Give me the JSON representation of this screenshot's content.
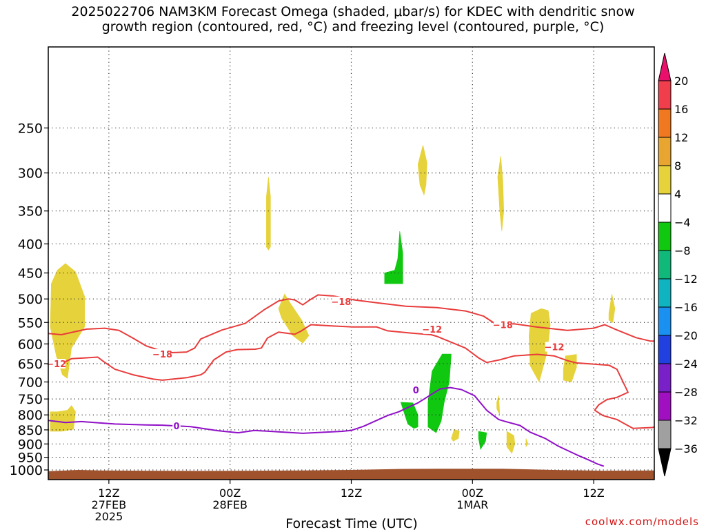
{
  "title_line1": "2025022706 NAM3KM Forecast Omega (shaded, μbar/s) for KDEC with dendritic snow",
  "title_line2": "growth region (contoured, red, °C) and freezing level (contoured, purple, °C)",
  "watermark": "coolwx.com/models",
  "chart_data": {
    "type": "contour-timeheight",
    "xlabel": "Forecast Time (UTC)",
    "x_ticks": [
      {
        "h": 6,
        "label": "12Z",
        "sub": [
          "27FEB",
          "2025"
        ]
      },
      {
        "h": 18,
        "label": "00Z",
        "sub": [
          "28FEB"
        ]
      },
      {
        "h": 30,
        "label": "12Z",
        "sub": []
      },
      {
        "h": 42,
        "label": "00Z",
        "sub": [
          "1MAR"
        ]
      },
      {
        "h": 54,
        "label": "12Z",
        "sub": []
      }
    ],
    "xlim": [
      0,
      60
    ],
    "y_scale": "log-pressure",
    "ylim": [
      1040,
      180
    ],
    "y_ticks": [
      250,
      300,
      350,
      400,
      450,
      500,
      550,
      600,
      650,
      700,
      750,
      800,
      850,
      900,
      950,
      1000
    ],
    "grid": true,
    "colorbar": {
      "ticks": [
        "20",
        "16",
        "12",
        "8",
        "4",
        "−4",
        "−8",
        "−12",
        "−16",
        "−20",
        "−24",
        "−28",
        "−32",
        "−36"
      ],
      "colors": [
        "#f03e4c",
        "#f07820",
        "#e8a630",
        "#e6d23a",
        "#ffffff",
        "#10c810",
        "#10b87a",
        "#10b4c0",
        "#1a90f0",
        "#2040e0",
        "#7a20c8",
        "#a010c0",
        "#a0a0a0"
      ],
      "top_color": "#e8106a",
      "bottom_color": "#000000"
    },
    "series": [
      {
        "kind": "contour",
        "temp": -12,
        "color": "#e83c3c",
        "labels": [
          [
            0.8,
            650
          ],
          [
            50.1,
            607
          ],
          [
            38,
            565
          ]
        ],
        "points": [
          [
            0,
            655
          ],
          [
            1.2,
            652
          ],
          [
            1.7,
            645
          ],
          [
            2.3,
            637
          ],
          [
            4.9,
            633
          ],
          [
            5.5,
            645
          ],
          [
            6.6,
            665
          ],
          [
            8.4,
            680
          ],
          [
            10.4,
            692
          ],
          [
            11.3,
            695
          ],
          [
            12.3,
            692
          ],
          [
            13.7,
            688
          ],
          [
            15.1,
            680
          ],
          [
            15.5,
            673
          ],
          [
            16.4,
            640
          ],
          [
            17.6,
            620
          ],
          [
            18.7,
            614
          ],
          [
            20.5,
            613
          ],
          [
            21.1,
            610
          ],
          [
            21.7,
            586
          ],
          [
            22.8,
            572
          ],
          [
            24.4,
            577
          ],
          [
            25,
            570
          ],
          [
            26,
            555
          ],
          [
            28.2,
            558
          ],
          [
            30,
            560
          ],
          [
            32.5,
            560
          ],
          [
            33.6,
            569
          ],
          [
            35.8,
            574
          ],
          [
            37.9,
            578
          ],
          [
            38.5,
            582
          ],
          [
            41.3,
            610
          ],
          [
            42.6,
            635
          ],
          [
            43.4,
            647
          ],
          [
            44.7,
            640
          ],
          [
            46.1,
            630
          ],
          [
            48.4,
            626
          ],
          [
            50.1,
            630
          ],
          [
            51.4,
            642
          ],
          [
            52.3,
            648
          ],
          [
            55.5,
            654
          ],
          [
            56.3,
            665
          ],
          [
            57.4,
            730
          ],
          [
            56.3,
            745
          ],
          [
            55.3,
            752
          ],
          [
            54.5,
            768
          ],
          [
            54.1,
            785
          ],
          [
            54.9,
            802
          ],
          [
            56.3,
            815
          ],
          [
            57.1,
            830
          ],
          [
            57.9,
            845
          ],
          [
            59.8,
            842
          ],
          [
            60,
            840
          ]
        ]
      },
      {
        "kind": "contour",
        "temp": -18,
        "color": "#e83c3c",
        "labels": [
          [
            11.3,
            625
          ],
          [
            29,
            505
          ],
          [
            45,
            555
          ]
        ],
        "points": [
          [
            0,
            575
          ],
          [
            1.3,
            578
          ],
          [
            3.8,
            565
          ],
          [
            5.6,
            563
          ],
          [
            7,
            568
          ],
          [
            8.3,
            585
          ],
          [
            9.7,
            605
          ],
          [
            11.8,
            622
          ],
          [
            13.7,
            620
          ],
          [
            14.5,
            610
          ],
          [
            15.1,
            588
          ],
          [
            17.2,
            567
          ],
          [
            19.5,
            552
          ],
          [
            21.4,
            522
          ],
          [
            22.8,
            504
          ],
          [
            23.8,
            500
          ],
          [
            24.4,
            502
          ],
          [
            25.2,
            512
          ],
          [
            25.9,
            502
          ],
          [
            26.7,
            492
          ],
          [
            28.2,
            494
          ],
          [
            30.3,
            502
          ],
          [
            32.6,
            508
          ],
          [
            35.4,
            515
          ],
          [
            38.5,
            518
          ],
          [
            41.3,
            525
          ],
          [
            43.1,
            536
          ],
          [
            44.2,
            552
          ],
          [
            44.7,
            555
          ],
          [
            46.1,
            553
          ],
          [
            48.3,
            560
          ],
          [
            51.4,
            568
          ],
          [
            54,
            563
          ],
          [
            55.1,
            555
          ],
          [
            56.1,
            565
          ],
          [
            58.2,
            585
          ],
          [
            59.6,
            593
          ],
          [
            60,
            593
          ]
        ]
      },
      {
        "kind": "contour",
        "temp": 0,
        "color": "#9010c8",
        "labels": [
          [
            12.7,
            836
          ],
          [
            36.4,
            723
          ]
        ],
        "points": [
          [
            0,
            818
          ],
          [
            1.7,
            825
          ],
          [
            3.3,
            822
          ],
          [
            4.9,
            826
          ],
          [
            6.6,
            830
          ],
          [
            9.7,
            833
          ],
          [
            11.3,
            834
          ],
          [
            14.1,
            839
          ],
          [
            16.8,
            853
          ],
          [
            18.8,
            860
          ],
          [
            20.4,
            852
          ],
          [
            22.8,
            857
          ],
          [
            25.2,
            862
          ],
          [
            29.1,
            855
          ],
          [
            30,
            852
          ],
          [
            31.2,
            838
          ],
          [
            33.6,
            802
          ],
          [
            34.7,
            790
          ],
          [
            36.6,
            762
          ],
          [
            38.8,
            720
          ],
          [
            39.8,
            716
          ],
          [
            40.9,
            722
          ],
          [
            42.2,
            740
          ],
          [
            43.4,
            785
          ],
          [
            44.6,
            815
          ],
          [
            45.3,
            822
          ],
          [
            46.7,
            835
          ],
          [
            47.7,
            858
          ],
          [
            49.2,
            880
          ],
          [
            50.5,
            908
          ],
          [
            52.3,
            940
          ],
          [
            53.6,
            962
          ],
          [
            54.3,
            975
          ],
          [
            55,
            985
          ]
        ]
      }
    ],
    "shaded": [
      {
        "band": "4 to 8",
        "color": "#e6d23a",
        "points": [
          [
            0.3,
            470
          ],
          [
            0.9,
            445
          ],
          [
            1.7,
            433
          ],
          [
            2.7,
            448
          ],
          [
            3.6,
            495
          ],
          [
            3.6,
            560
          ],
          [
            2.3,
            610
          ],
          [
            1.9,
            690
          ],
          [
            1.4,
            680
          ],
          [
            0.8,
            630
          ],
          [
            0.2,
            560
          ]
        ]
      },
      {
        "band": "4 to 8",
        "color": "#e6d23a",
        "points": [
          [
            0.2,
            790
          ],
          [
            0.9,
            790
          ],
          [
            1.9,
            785
          ],
          [
            2.3,
            770
          ],
          [
            2.7,
            790
          ],
          [
            2.5,
            848
          ],
          [
            1.3,
            855
          ],
          [
            0.2,
            855
          ]
        ]
      },
      {
        "band": "4 to 8",
        "color": "#e6d23a",
        "points": [
          [
            21.6,
            330
          ],
          [
            21.8,
            305
          ],
          [
            22,
            330
          ],
          [
            22,
            405
          ],
          [
            21.8,
            410
          ],
          [
            21.6,
            405
          ]
        ]
      },
      {
        "band": "4 to 8",
        "color": "#e6d23a",
        "points": [
          [
            22.8,
            520
          ],
          [
            23.4,
            490
          ],
          [
            24,
            510
          ],
          [
            25.1,
            545
          ],
          [
            25.8,
            580
          ],
          [
            25.2,
            598
          ],
          [
            24.2,
            580
          ],
          [
            23.1,
            540
          ]
        ]
      },
      {
        "band": "4 to 8",
        "color": "#e6d23a",
        "points": [
          [
            36.6,
            290
          ],
          [
            37.1,
            268
          ],
          [
            37.5,
            288
          ],
          [
            37.4,
            315
          ],
          [
            37.2,
            328
          ],
          [
            36.8,
            315
          ]
        ]
      },
      {
        "band": "4 to 8",
        "color": "#e6d23a",
        "points": [
          [
            44.5,
            305
          ],
          [
            44.8,
            280
          ],
          [
            45,
            310
          ],
          [
            45.1,
            350
          ],
          [
            44.9,
            380
          ],
          [
            44.7,
            350
          ]
        ]
      },
      {
        "band": "4 to 8",
        "color": "#e6d23a",
        "points": [
          [
            47.8,
            530
          ],
          [
            48.8,
            520
          ],
          [
            49.5,
            524
          ],
          [
            49.7,
            555
          ],
          [
            49.4,
            620
          ],
          [
            48.6,
            700
          ],
          [
            47.7,
            655
          ],
          [
            47.6,
            580
          ]
        ]
      },
      {
        "band": "4 to 8",
        "color": "#e6d23a",
        "points": [
          [
            51.2,
            630
          ],
          [
            52.3,
            626
          ],
          [
            52.3,
            660
          ],
          [
            51.8,
            700
          ],
          [
            51,
            695
          ],
          [
            51,
            665
          ]
        ]
      },
      {
        "band": "4 to 8",
        "color": "#e6d23a",
        "points": [
          [
            55.5,
            530
          ],
          [
            55.8,
            490
          ],
          [
            56.1,
            520
          ],
          [
            55.9,
            550
          ],
          [
            55.5,
            545
          ]
        ]
      },
      {
        "band": "4 to 8",
        "color": "#e6d23a",
        "points": [
          [
            40.2,
            848
          ],
          [
            40.7,
            855
          ],
          [
            40.6,
            880
          ],
          [
            40.1,
            890
          ],
          [
            39.9,
            880
          ]
        ]
      },
      {
        "band": "4 to 8",
        "color": "#e6d23a",
        "points": [
          [
            44.6,
            740
          ],
          [
            44.7,
            800
          ],
          [
            44.4,
            780
          ],
          [
            44.4,
            760
          ]
        ]
      },
      {
        "band": "4 to 8",
        "color": "#e6d23a",
        "points": [
          [
            45.4,
            855
          ],
          [
            46.1,
            870
          ],
          [
            46.2,
            900
          ],
          [
            45.9,
            935
          ],
          [
            45.4,
            910
          ]
        ]
      },
      {
        "band": "4 to 8",
        "color": "#e6d23a",
        "points": [
          [
            47.3,
            880
          ],
          [
            47.5,
            900
          ],
          [
            47.3,
            910
          ]
        ]
      },
      {
        "band": "-4 to -8",
        "color": "#10c810",
        "points": [
          [
            33.3,
            450
          ],
          [
            34.3,
            445
          ],
          [
            34.6,
            425
          ],
          [
            34.8,
            380
          ],
          [
            35.1,
            415
          ],
          [
            35.1,
            470
          ],
          [
            33.3,
            470
          ]
        ]
      },
      {
        "band": "-4 to -8",
        "color": "#10c810",
        "points": [
          [
            34.9,
            760
          ],
          [
            36.1,
            762
          ],
          [
            36.6,
            800
          ],
          [
            36.6,
            840
          ],
          [
            36.2,
            845
          ],
          [
            35.6,
            830
          ]
        ]
      },
      {
        "band": "-4 to -8",
        "color": "#10c810",
        "points": [
          [
            38,
            670
          ],
          [
            39,
            625
          ],
          [
            39.9,
            625
          ],
          [
            39.7,
            700
          ],
          [
            39.2,
            760
          ],
          [
            38.9,
            820
          ],
          [
            38.4,
            860
          ],
          [
            37.6,
            840
          ],
          [
            37.6,
            760
          ]
        ]
      },
      {
        "band": "-4 to -8",
        "color": "#10c810",
        "points": [
          [
            42.6,
            855
          ],
          [
            43.4,
            860
          ],
          [
            43.3,
            890
          ],
          [
            42.8,
            920
          ],
          [
            42.6,
            880
          ]
        ]
      }
    ],
    "ground": {
      "color": "#a0522d",
      "base_pressure": 1040,
      "points": [
        [
          0,
          1005
        ],
        [
          3,
          1000
        ],
        [
          5,
          1002
        ],
        [
          10,
          1003
        ],
        [
          15,
          1004
        ],
        [
          20,
          1003
        ],
        [
          25,
          1002
        ],
        [
          30,
          1000
        ],
        [
          35,
          996
        ],
        [
          40,
          995
        ],
        [
          45,
          995
        ],
        [
          50,
          1000
        ],
        [
          55,
          1003
        ],
        [
          60,
          1002
        ]
      ]
    }
  }
}
